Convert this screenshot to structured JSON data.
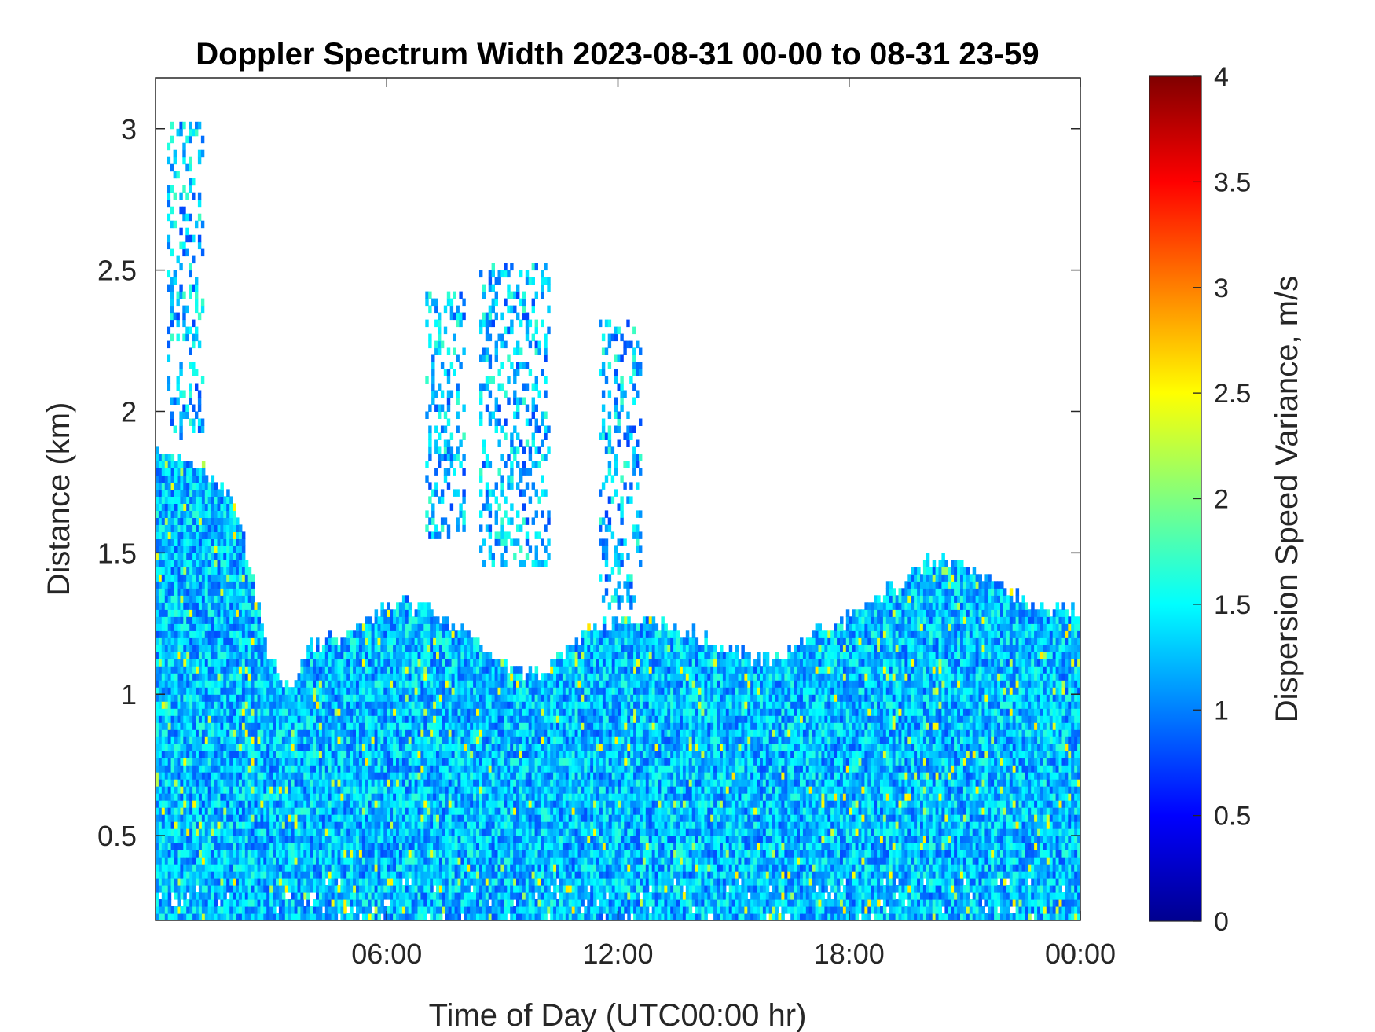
{
  "chart_data": {
    "type": "heatmap",
    "title": "Doppler Spectrum Width 2023-08-31 00-00 to 08-31 23-59",
    "xlabel": "Time of Day (UTC00:00 hr)",
    "ylabel": "Distance (km)",
    "x_unit": "hours",
    "xlim": [
      0,
      24
    ],
    "ylim": [
      0.2,
      3.18
    ],
    "x_ticks": [
      6,
      12,
      18,
      24
    ],
    "x_tick_labels": [
      "06:00",
      "12:00",
      "18:00",
      "00:00"
    ],
    "y_ticks": [
      0.5,
      1,
      1.5,
      2,
      2.5,
      3
    ],
    "y_tick_labels": [
      "0.5",
      "1",
      "1.5",
      "2",
      "2.5",
      "3"
    ],
    "colorbar": {
      "label": "Dispersion Speed Variance, m/s",
      "colormap": "jet",
      "clim": [
        0,
        4
      ],
      "ticks": [
        0,
        0.5,
        1,
        1.5,
        2,
        2.5,
        3,
        3.5,
        4
      ],
      "tick_labels": [
        "0",
        "0.5",
        "1",
        "1.5",
        "2",
        "2.5",
        "3",
        "3.5",
        "4"
      ]
    },
    "typical_value": 1.25,
    "layer_top_km": {
      "hours": [
        0,
        1,
        2,
        2.5,
        3,
        3.5,
        4,
        5,
        6,
        7,
        8,
        9,
        10,
        11,
        12,
        13,
        14,
        15,
        16,
        17,
        18,
        19,
        20,
        21,
        22,
        23,
        24
      ],
      "km": [
        1.85,
        1.8,
        1.7,
        1.4,
        1.1,
        1.0,
        1.15,
        1.2,
        1.3,
        1.3,
        1.2,
        1.1,
        1.05,
        1.2,
        1.25,
        1.25,
        1.2,
        1.15,
        1.1,
        1.2,
        1.25,
        1.35,
        1.45,
        1.45,
        1.35,
        1.3,
        1.3
      ]
    },
    "upper_plumes": [
      {
        "hours": [
          0.3,
          1.2
        ],
        "km": [
          1.9,
          3.0
        ]
      },
      {
        "hours": [
          7.0,
          8.0
        ],
        "km": [
          1.55,
          2.4
        ]
      },
      {
        "hours": [
          8.4,
          10.2
        ],
        "km": [
          1.45,
          2.5
        ]
      },
      {
        "hours": [
          11.5,
          12.6
        ],
        "km": [
          1.3,
          2.3
        ]
      }
    ]
  }
}
